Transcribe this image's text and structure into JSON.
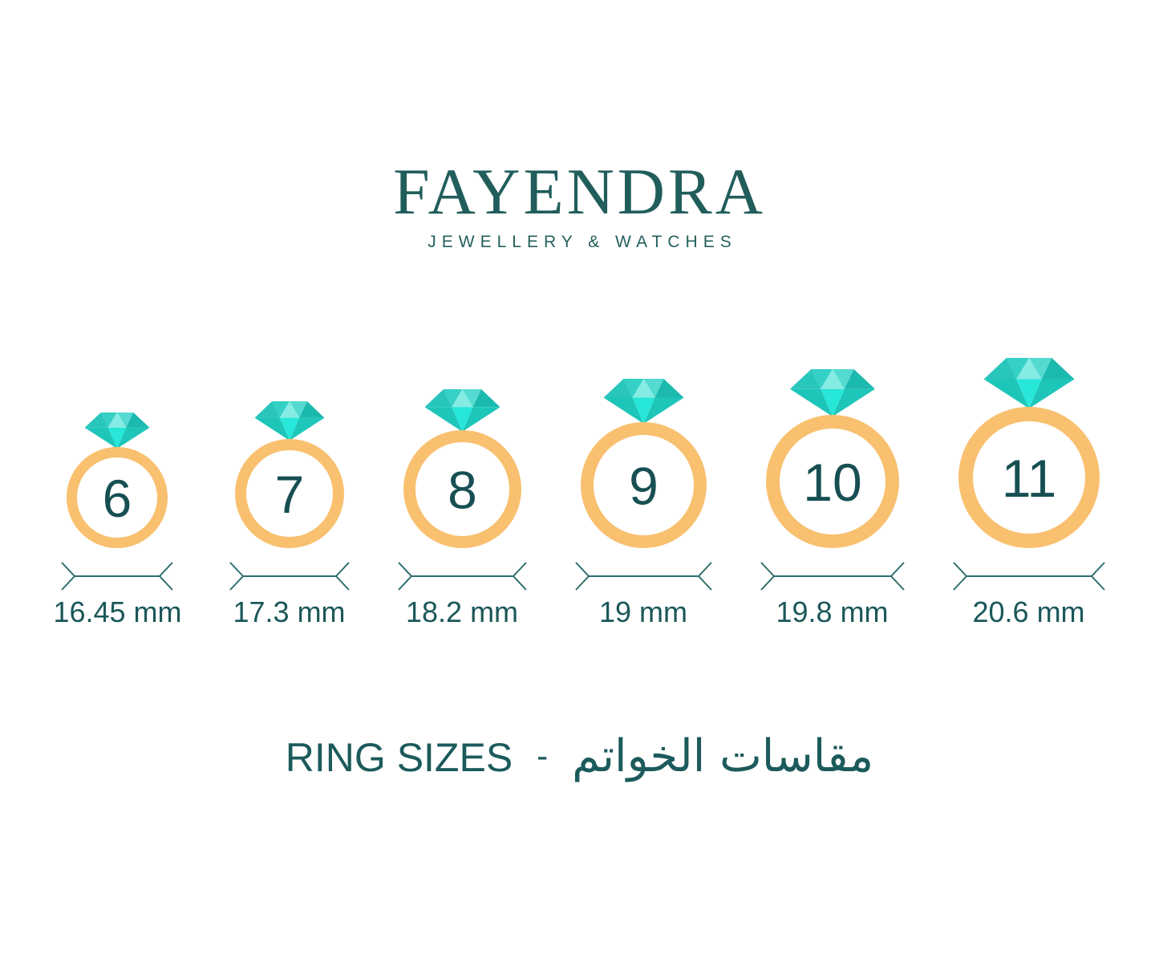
{
  "brand": {
    "name": "FAYENDRA",
    "tagline": "JEWELLERY & WATCHES"
  },
  "rings": [
    {
      "size": "6",
      "mm": 16.45,
      "label": "16.45 mm"
    },
    {
      "size": "7",
      "mm": 17.3,
      "label": "17.3 mm"
    },
    {
      "size": "8",
      "mm": 18.2,
      "label": "18.2 mm"
    },
    {
      "size": "9",
      "mm": 19,
      "label": "19 mm"
    },
    {
      "size": "10",
      "mm": 19.8,
      "label": "19.8 mm"
    },
    {
      "size": "11",
      "mm": 20.6,
      "label": "20.6 mm"
    }
  ],
  "caption": {
    "en": "RING SIZES",
    "separator": "-",
    "ar": "مقاسات الخواتم"
  },
  "colors": {
    "text": "#1C5A5B",
    "band": "#F8C06F",
    "number": "#174F53",
    "measure": "#2F6E6E",
    "diamond": {
      "crown_left": "#28C6BB",
      "crown_left_inner": "#35D0C6",
      "crown_center": "#85EBE3",
      "crown_right_inner": "#54DAD1",
      "crown_right": "#1CB9AF",
      "pavilion_side": "#1EC6BA",
      "pavilion_center": "#27E7D9"
    }
  }
}
